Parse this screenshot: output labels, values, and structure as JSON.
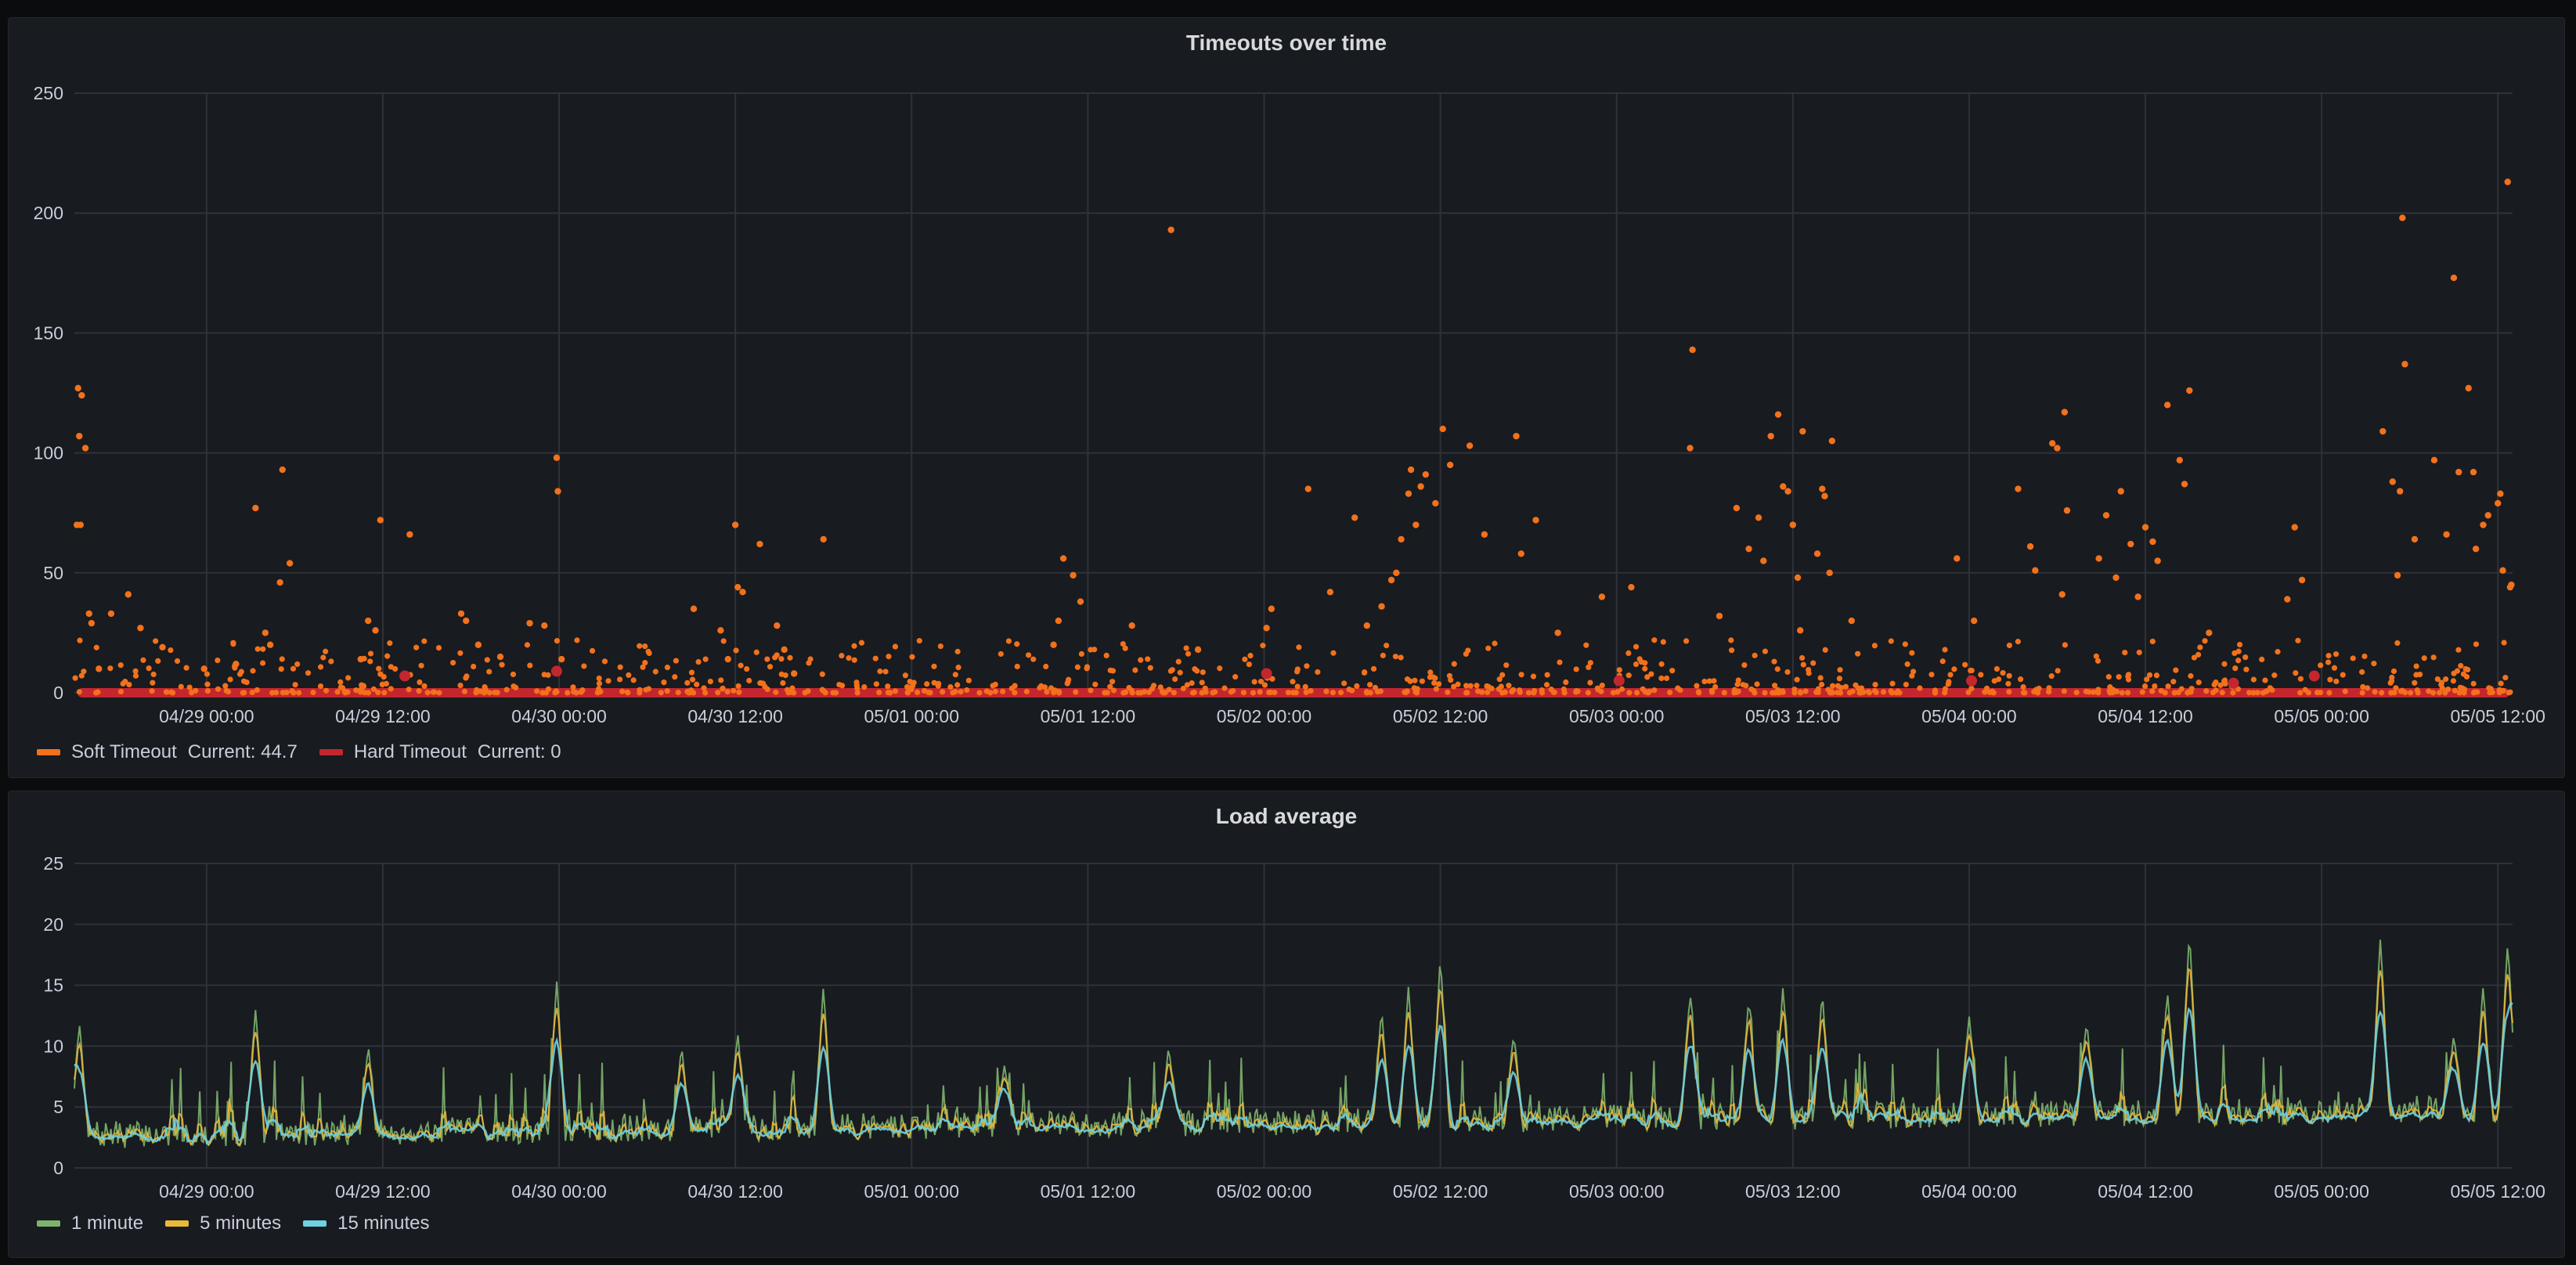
{
  "panels": [
    {
      "title": "Timeouts over time",
      "legend": [
        {
          "name": "Soft Timeout",
          "current": "Current: 44.7",
          "color": "#f2711c"
        },
        {
          "name": "Hard Timeout",
          "current": "Current: 0",
          "color": "#c4262e"
        }
      ]
    },
    {
      "title": "Load average",
      "legend": [
        {
          "name": "1 minute",
          "color": "#7eb26d"
        },
        {
          "name": "5 minutes",
          "color": "#eab839"
        },
        {
          "name": "15 minutes",
          "color": "#6ed0e0"
        }
      ]
    }
  ],
  "chart_data": [
    {
      "type": "scatter",
      "title": "Timeouts over time",
      "xlabel": "",
      "ylabel": "",
      "x_range": [
        "2025-04-28 15:00",
        "2025-05-05 13:00"
      ],
      "ylim": [
        0,
        250
      ],
      "yticks": [
        0,
        50,
        100,
        150,
        200,
        250
      ],
      "xticks": [
        "04/29 00:00",
        "04/29 12:00",
        "04/30 00:00",
        "04/30 12:00",
        "05/01 00:00",
        "05/01 12:00",
        "05/02 00:00",
        "05/02 12:00",
        "05/03 00:00",
        "05/03 12:00",
        "05/04 00:00",
        "05/04 12:00",
        "05/05 00:00",
        "05/05 12:00"
      ],
      "grid": true,
      "legend_position": "bottom-left",
      "series": [
        {
          "name": "Soft Timeout",
          "color": "#f2711c",
          "points": [
            [
              "04/28 15:15",
              127
            ],
            [
              "04/28 15:30",
              124
            ],
            [
              "04/28 15:20",
              107
            ],
            [
              "04/28 15:45",
              102
            ],
            [
              "04/28 15:10",
              70
            ],
            [
              "04/28 15:25",
              70
            ],
            [
              "04/28 16:00",
              33
            ],
            [
              "04/28 16:10",
              29
            ],
            [
              "04/28 17:30",
              33
            ],
            [
              "04/28 18:40",
              41
            ],
            [
              "04/28 19:30",
              27
            ],
            [
              "04/28 16:40",
              10
            ],
            [
              "04/29 22:00",
              29
            ],
            [
              "04/29 23:00",
              28
            ],
            [
              "04/28 21:00",
              19
            ],
            [
              "04/28 23:50",
              10
            ],
            [
              "04/29 02:00",
              12
            ],
            [
              "04/29 03:20",
              77
            ],
            [
              "04/29 04:00",
              25
            ],
            [
              "04/29 04:20",
              20
            ],
            [
              "04/29 05:10",
              93
            ],
            [
              "04/29 05:00",
              46
            ],
            [
              "04/29 05:40",
              54
            ],
            [
              "04/29 11:50",
              72
            ],
            [
              "04/29 11:00",
              30
            ],
            [
              "04/29 11:30",
              26
            ],
            [
              "04/29 10:30",
              14
            ],
            [
              "04/29 13:50",
              66
            ],
            [
              "04/29 17:20",
              33
            ],
            [
              "04/29 17:40",
              30
            ],
            [
              "04/29 18:30",
              20
            ],
            [
              "04/29 20:00",
              15
            ],
            [
              "04/29 23:50",
              98
            ],
            [
              "04/29 23:55",
              84
            ],
            [
              "04/30 00:10",
              14
            ],
            [
              "04/30 09:10",
              35
            ],
            [
              "04/30 11:00",
              26
            ],
            [
              "04/30 12:00",
              70
            ],
            [
              "04/30 12:10",
              44
            ],
            [
              "04/30 12:30",
              42
            ],
            [
              "04/30 13:40",
              62
            ],
            [
              "04/30 11:30",
              14
            ],
            [
              "04/30 15:20",
              18
            ],
            [
              "04/30 18:00",
              64
            ],
            [
              "04/30 14:50",
              28
            ],
            [
              "04/30 16:00",
              8
            ],
            [
              "05/01 10:20",
              56
            ],
            [
              "05/01 10:00",
              30
            ],
            [
              "05/01 11:00",
              49
            ],
            [
              "05/01 11:30",
              38
            ],
            [
              "05/01 09:40",
              20
            ],
            [
              "05/01 15:00",
              28
            ],
            [
              "05/01 17:40",
              193
            ],
            [
              "05/01 19:30",
              18
            ],
            [
              "05/02 00:30",
              35
            ],
            [
              "05/02 00:10",
              27
            ],
            [
              "05/02 03:00",
              85
            ],
            [
              "05/02 04:30",
              42
            ],
            [
              "05/02 06:10",
              73
            ],
            [
              "05/02 07:00",
              28
            ],
            [
              "05/02 08:00",
              36
            ],
            [
              "05/02 08:40",
              47
            ],
            [
              "05/02 09:00",
              50
            ],
            [
              "05/02 09:20",
              64
            ],
            [
              "05/02 09:50",
              83
            ],
            [
              "05/02 10:00",
              93
            ],
            [
              "05/02 10:20",
              70
            ],
            [
              "05/02 10:40",
              86
            ],
            [
              "05/02 11:00",
              91
            ],
            [
              "05/02 12:10",
              110
            ],
            [
              "05/02 12:40",
              95
            ],
            [
              "05/02 11:40",
              79
            ],
            [
              "05/02 14:00",
              103
            ],
            [
              "05/02 15:00",
              66
            ],
            [
              "05/02 17:10",
              107
            ],
            [
              "05/02 17:30",
              58
            ],
            [
              "05/02 18:30",
              72
            ],
            [
              "05/02 20:00",
              25
            ],
            [
              "05/02 23:00",
              40
            ],
            [
              "05/03 01:00",
              44
            ],
            [
              "05/03 05:10",
              143
            ],
            [
              "05/03 05:00",
              102
            ],
            [
              "05/03 07:00",
              32
            ],
            [
              "05/03 08:10",
              77
            ],
            [
              "05/03 09:00",
              60
            ],
            [
              "05/03 09:40",
              73
            ],
            [
              "05/03 10:00",
              55
            ],
            [
              "05/03 10:30",
              107
            ],
            [
              "05/03 11:00",
              116
            ],
            [
              "05/03 11:20",
              86
            ],
            [
              "05/03 11:40",
              84
            ],
            [
              "05/03 12:00",
              70
            ],
            [
              "05/03 12:40",
              109
            ],
            [
              "05/03 12:20",
              48
            ],
            [
              "05/03 12:30",
              26
            ],
            [
              "05/03 14:40",
              105
            ],
            [
              "05/03 14:00",
              85
            ],
            [
              "05/03 14:10",
              82
            ],
            [
              "05/03 14:30",
              50
            ],
            [
              "05/03 13:40",
              58
            ],
            [
              "05/03 16:00",
              30
            ],
            [
              "05/03 23:10",
              56
            ],
            [
              "05/04 00:20",
              30
            ],
            [
              "05/04 03:20",
              85
            ],
            [
              "05/04 04:10",
              61
            ],
            [
              "05/04 04:30",
              51
            ],
            [
              "05/04 05:40",
              104
            ],
            [
              "05/04 06:00",
              102
            ],
            [
              "05/04 06:30",
              117
            ],
            [
              "05/04 06:40",
              76
            ],
            [
              "05/04 06:20",
              41
            ],
            [
              "05/04 08:50",
              56
            ],
            [
              "05/04 09:20",
              74
            ],
            [
              "05/04 10:00",
              48
            ],
            [
              "05/04 10:20",
              84
            ],
            [
              "05/04 11:00",
              62
            ],
            [
              "05/04 11:30",
              40
            ],
            [
              "05/04 12:00",
              69
            ],
            [
              "05/04 12:30",
              63
            ],
            [
              "05/04 12:50",
              55
            ],
            [
              "05/04 13:30",
              120
            ],
            [
              "05/04 15:00",
              126
            ],
            [
              "05/04 14:40",
              87
            ],
            [
              "05/04 14:20",
              97
            ],
            [
              "05/04 16:20",
              25
            ],
            [
              "05/04 22:10",
              69
            ],
            [
              "05/04 22:40",
              47
            ],
            [
              "05/04 21:40",
              39
            ],
            [
              "05/05 04:10",
              109
            ],
            [
              "05/05 04:50",
              88
            ],
            [
              "05/05 05:20",
              84
            ],
            [
              "05/05 05:30",
              198
            ],
            [
              "05/05 05:40",
              137
            ],
            [
              "05/05 05:10",
              49
            ],
            [
              "05/05 06:20",
              64
            ],
            [
              "05/05 07:40",
              97
            ],
            [
              "05/05 08:30",
              66
            ],
            [
              "05/05 09:00",
              173
            ],
            [
              "05/05 09:20",
              92
            ],
            [
              "05/05 10:00",
              127
            ],
            [
              "05/05 10:20",
              92
            ],
            [
              "05/05 10:30",
              60
            ],
            [
              "05/05 11:00",
              70
            ],
            [
              "05/05 11:20",
              74
            ],
            [
              "05/05 12:00",
              79
            ],
            [
              "05/05 12:10",
              83
            ],
            [
              "05/05 12:20",
              51
            ],
            [
              "05/05 12:40",
              213
            ],
            [
              "05/05 12:50",
              44
            ],
            [
              "05/05 12:55",
              45
            ]
          ]
        },
        {
          "name": "Hard Timeout",
          "color": "#c4262e",
          "baseline": 0,
          "points": [
            [
              "04/29 13:30",
              7
            ],
            [
              "04/29 23:50",
              9
            ],
            [
              "05/02 00:10",
              8
            ],
            [
              "05/03 00:10",
              5
            ],
            [
              "05/04 00:10",
              5
            ],
            [
              "05/04 18:00",
              4
            ],
            [
              "05/04 23:30",
              7
            ]
          ]
        }
      ]
    },
    {
      "type": "line",
      "title": "Load average",
      "xlabel": "",
      "ylabel": "",
      "x_range": [
        "2025-04-28 15:00",
        "2025-05-05 13:00"
      ],
      "ylim": [
        0,
        25
      ],
      "yticks": [
        0,
        5,
        10,
        15,
        20,
        25
      ],
      "xticks": [
        "04/29 00:00",
        "04/29 12:00",
        "04/30 00:00",
        "04/30 12:00",
        "05/01 00:00",
        "05/01 12:00",
        "05/02 00:00",
        "05/02 12:00",
        "05/03 00:00",
        "05/03 12:00",
        "05/04 00:00",
        "05/04 12:00",
        "05/05 00:00",
        "05/05 12:00"
      ],
      "grid": true,
      "legend_position": "bottom-left",
      "series": [
        {
          "name": "1 minute",
          "color": "#7eb26d"
        },
        {
          "name": "5 minutes",
          "color": "#eab839"
        },
        {
          "name": "15 minutes",
          "color": "#6ed0e0"
        }
      ],
      "peaks": [
        [
          "04/28 15:20",
          12
        ],
        [
          "04/29 03:20",
          13
        ],
        [
          "04/29 11:00",
          10
        ],
        [
          "04/29 23:50",
          15.5
        ],
        [
          "04/30 08:20",
          10
        ],
        [
          "04/30 12:10",
          11
        ],
        [
          "04/30 18:00",
          15
        ],
        [
          "05/01 06:20",
          8.5
        ],
        [
          "05/01 17:30",
          10
        ],
        [
          "05/02 08:00",
          13
        ],
        [
          "05/02 09:50",
          15
        ],
        [
          "05/02 12:00",
          17.5
        ],
        [
          "05/02 17:00",
          11
        ],
        [
          "05/03 05:00",
          14.5
        ],
        [
          "05/03 09:00",
          14
        ],
        [
          "05/03 11:20",
          15
        ],
        [
          "05/03 14:00",
          14.5
        ],
        [
          "05/04 00:00",
          12.5
        ],
        [
          "05/04 08:00",
          12
        ],
        [
          "05/04 13:30",
          14.5
        ],
        [
          "05/04 15:00",
          19.5
        ],
        [
          "05/05 04:00",
          19
        ],
        [
          "05/05 09:00",
          11
        ],
        [
          "05/05 11:00",
          15
        ],
        [
          "05/05 12:40",
          18.5
        ]
      ],
      "baseline_range": [
        1,
        6
      ]
    }
  ]
}
